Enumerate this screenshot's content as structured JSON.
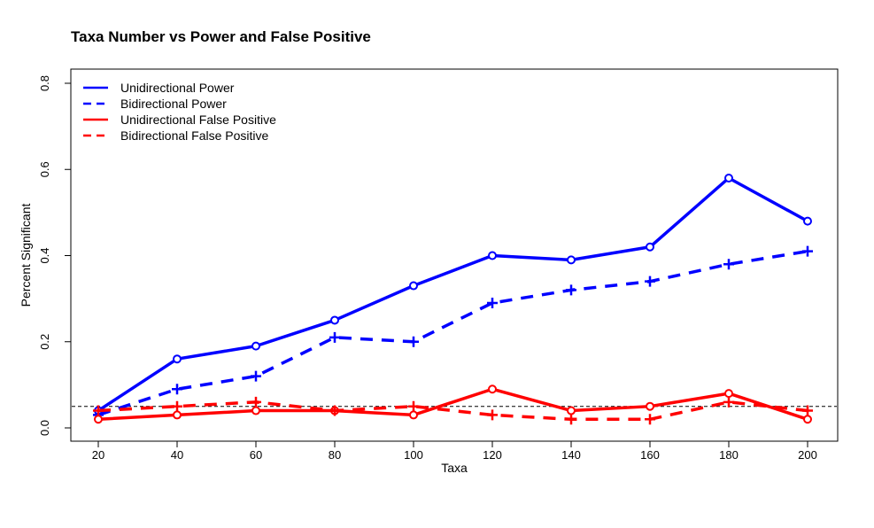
{
  "chart_data": {
    "type": "line",
    "title": "Taxa Number vs Power and False Positive",
    "xlabel": "Taxa",
    "ylabel": "Percent Significant",
    "x": [
      20,
      40,
      60,
      80,
      100,
      120,
      140,
      160,
      180,
      200
    ],
    "xticks": [
      "20",
      "40",
      "60",
      "80",
      "100",
      "120",
      "140",
      "160",
      "180",
      "200"
    ],
    "yticks": [
      "0.0",
      "0.2",
      "0.4",
      "0.6",
      "0.8"
    ],
    "xlim": [
      20,
      200
    ],
    "ylim": [
      0,
      0.8
    ],
    "reference_line": {
      "y": 0.05,
      "style": "dashed",
      "color": "#000000"
    },
    "legend_position": "top-left",
    "grid": false,
    "series": [
      {
        "name": "Unidirectional Power",
        "color": "#0000ff",
        "linestyle": "solid",
        "marker": "circle",
        "values": [
          0.04,
          0.16,
          0.19,
          0.25,
          0.33,
          0.4,
          0.39,
          0.42,
          0.58,
          0.48
        ]
      },
      {
        "name": "Bidirectional Power",
        "color": "#0000ff",
        "linestyle": "dashed",
        "marker": "plus",
        "values": [
          0.03,
          0.09,
          0.12,
          0.21,
          0.2,
          0.29,
          0.32,
          0.34,
          0.38,
          0.41
        ]
      },
      {
        "name": "Unidirectional False Positive",
        "color": "#ff0000",
        "linestyle": "solid",
        "marker": "circle",
        "values": [
          0.02,
          0.03,
          0.04,
          0.04,
          0.03,
          0.09,
          0.04,
          0.05,
          0.08,
          0.02
        ]
      },
      {
        "name": "Bidirectional False Positive",
        "color": "#ff0000",
        "linestyle": "dashed",
        "marker": "plus",
        "values": [
          0.04,
          0.05,
          0.06,
          0.04,
          0.05,
          0.03,
          0.02,
          0.02,
          0.06,
          0.04
        ]
      }
    ]
  }
}
